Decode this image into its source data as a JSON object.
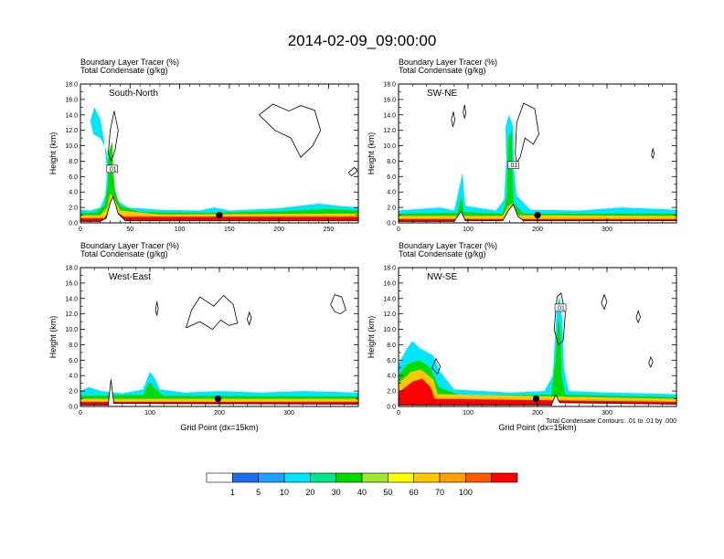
{
  "title": "2014-02-09_09:00:00",
  "field_line1": "Boundary Layer Tracer   (%)",
  "field_line2": "Total Condensate   (g/kg)",
  "ylabel": "Height (km)",
  "xlabel": "Grid Point (dx=15km)",
  "contour_note": "Total Condensate Contours: .01 to .01 by .000",
  "contour_label": ".01",
  "colors": {
    "c0": "#ffffff",
    "c1": "#1e6ef0",
    "c5": "#1ea0ff",
    "c10": "#00e6ff",
    "c20": "#00e68c",
    "c30": "#00dc00",
    "c40": "#a0e632",
    "c50": "#ffff00",
    "c60": "#ffc800",
    "c70": "#ffa000",
    "c80": "#ff5a00",
    "c100": "#ff0000"
  },
  "chart_data": [
    {
      "type": "heatmap",
      "panel_label": "South-North",
      "xlim": [
        0,
        280
      ],
      "xticks": [
        "0",
        "50",
        "100",
        "150",
        "200",
        "250"
      ],
      "ylim": [
        0,
        18
      ],
      "yticks": [
        "0.0",
        "2.0",
        "4.0",
        "6.0",
        "8.0",
        "10.0",
        "12.0",
        "14.0",
        "16.0",
        "18.0"
      ],
      "marker": [
        140,
        1.0
      ],
      "contour_label_at": [
        32,
        7
      ]
    },
    {
      "type": "heatmap",
      "panel_label": "SW-NE",
      "xlim": [
        0,
        400
      ],
      "xticks": [
        "0",
        "100",
        "200",
        "300"
      ],
      "ylim": [
        0,
        18
      ],
      "yticks": [
        "0.0",
        "2.0",
        "4.0",
        "6.0",
        "8.0",
        "10.0",
        "12.0",
        "14.0",
        "16.0",
        "18.0"
      ],
      "marker": [
        200,
        1.0
      ],
      "contour_label_at": [
        165,
        7.5
      ]
    },
    {
      "type": "heatmap",
      "panel_label": "West-East",
      "xlim": [
        0,
        400
      ],
      "xticks": [
        "0",
        "100",
        "200",
        "300"
      ],
      "ylim": [
        0,
        18
      ],
      "yticks": [
        "0.0",
        "2.0",
        "4.0",
        "6.0",
        "8.0",
        "10.0",
        "12.0",
        "14.0",
        "16.0",
        "18.0"
      ],
      "marker": [
        198,
        1.0
      ],
      "contour_label_at": null
    },
    {
      "type": "heatmap",
      "panel_label": "NW-SE",
      "xlim": [
        0,
        400
      ],
      "xticks": [
        "0",
        "100",
        "200",
        "300"
      ],
      "ylim": [
        0,
        18
      ],
      "yticks": [
        "0.0",
        "2.0",
        "4.0",
        "6.0",
        "8.0",
        "10.0",
        "12.0",
        "14.0",
        "16.0",
        "18.0"
      ],
      "marker": [
        198,
        1.0
      ],
      "contour_label_at": [
        233,
        12.8
      ]
    }
  ],
  "colorbar": {
    "labels": [
      "1",
      "5",
      "10",
      "20",
      "30",
      "40",
      "50",
      "60",
      "70",
      "100"
    ],
    "colors": [
      "#ffffff",
      "#1e6ef0",
      "#1ea0ff",
      "#00e6ff",
      "#00e68c",
      "#00dc00",
      "#a0e632",
      "#ffff00",
      "#ffc800",
      "#ffa000",
      "#ff5a00",
      "#ff0000"
    ]
  }
}
